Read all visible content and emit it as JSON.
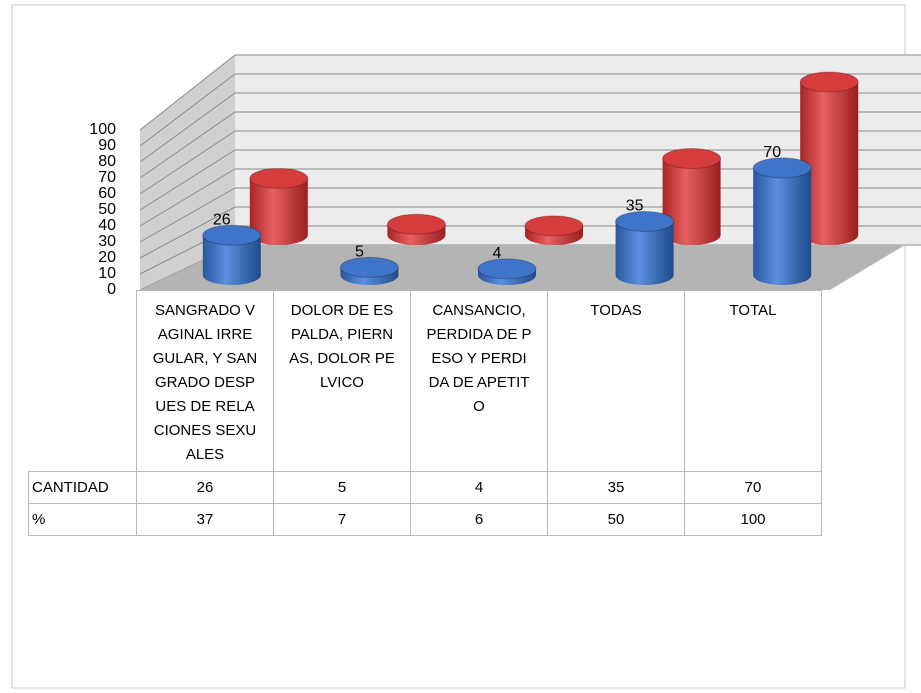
{
  "chart_data": {
    "type": "cylinder3d",
    "categories": [
      "SANGRADO VAGINAL IRREGULAR, Y SANGRADO DESPUES DE RELACIONES SEXUALES",
      "DOLOR DE ESPALDA, PIERNAS, DOLOR PELVICO",
      "CANSANCIO, PERDIDA DE PESO Y PERDIDA DE APETITO",
      "TODAS",
      "TOTAL"
    ],
    "series": [
      {
        "name": "CANTIDAD",
        "color": "#3f74c9",
        "values": [
          26,
          5,
          4,
          35,
          70
        ]
      },
      {
        "name": "%",
        "color": "#d63c3c",
        "values": [
          37,
          7,
          6,
          50,
          100
        ]
      }
    ],
    "ylim": [
      0,
      100
    ],
    "yticks": [
      0,
      10,
      20,
      30,
      40,
      50,
      60,
      70,
      80,
      90,
      100
    ],
    "grid": true
  }
}
